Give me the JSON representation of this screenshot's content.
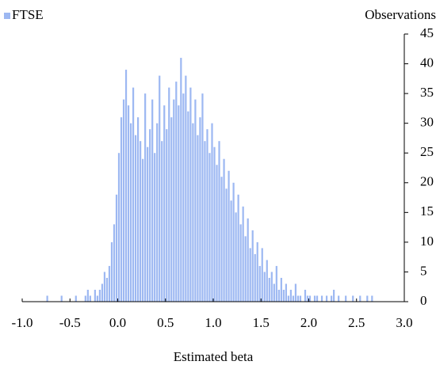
{
  "chart_data": {
    "type": "histogram",
    "x_label": "Estimated beta",
    "y_label": "Observations",
    "series": [
      {
        "name": "FTSE",
        "color": "#9db8f2",
        "values": [
          0,
          0,
          0,
          0,
          0,
          0,
          0,
          0,
          0,
          0,
          1,
          0,
          0,
          0,
          0,
          0,
          1,
          0,
          0,
          0,
          0,
          0,
          1,
          0,
          0,
          0,
          1,
          2,
          1,
          0,
          2,
          1,
          2,
          3,
          5,
          4,
          6,
          10,
          13,
          18,
          25,
          31,
          34,
          39,
          33,
          30,
          36,
          28,
          31,
          27,
          24,
          35,
          26,
          29,
          34,
          25,
          30,
          38,
          27,
          33,
          29,
          36,
          31,
          34,
          37,
          33,
          41,
          35,
          38,
          32,
          36,
          30,
          34,
          28,
          31,
          35,
          27,
          29,
          25,
          30,
          26,
          23,
          27,
          21,
          24,
          19,
          22,
          17,
          20,
          15,
          18,
          13,
          16,
          11,
          14,
          9,
          12,
          8,
          10,
          6,
          9,
          5,
          7,
          4,
          5,
          3,
          6,
          2,
          4,
          2,
          3,
          1,
          2,
          1,
          3,
          1,
          1,
          0,
          2,
          1,
          1,
          0,
          1,
          1,
          0,
          1,
          0,
          1,
          0,
          1,
          2,
          0,
          1,
          0,
          0,
          1,
          0,
          0,
          1,
          0,
          0,
          1,
          0,
          0,
          1,
          0,
          1,
          0,
          0,
          0,
          0,
          0,
          0,
          0,
          0,
          0,
          0,
          0,
          0,
          0
        ]
      }
    ],
    "bins": [
      -1,
      -0.975,
      -0.95,
      -0.925,
      -0.9,
      -0.875,
      -0.85,
      -0.825,
      -0.8,
      -0.775,
      -0.75,
      -0.725,
      -0.7,
      -0.675,
      -0.65,
      -0.625,
      -0.6,
      -0.575,
      -0.55,
      -0.525,
      -0.5,
      -0.475,
      -0.45,
      -0.425,
      -0.4,
      -0.375,
      -0.35,
      -0.325,
      -0.3,
      -0.275,
      -0.25,
      -0.225,
      -0.2,
      -0.175,
      -0.15,
      -0.125,
      -0.1,
      -0.075,
      -0.05,
      -0.025,
      0,
      0.025,
      0.05,
      0.075,
      0.1,
      0.125,
      0.15,
      0.175,
      0.2,
      0.225,
      0.25,
      0.275,
      0.3,
      0.325,
      0.35,
      0.375,
      0.4,
      0.425,
      0.45,
      0.475,
      0.5,
      0.525,
      0.55,
      0.575,
      0.6,
      0.625,
      0.65,
      0.675,
      0.7,
      0.725,
      0.75,
      0.775,
      0.8,
      0.825,
      0.85,
      0.875,
      0.9,
      0.925,
      0.95,
      0.975,
      1,
      1.025,
      1.05,
      1.075,
      1.1,
      1.125,
      1.15,
      1.175,
      1.2,
      1.225,
      1.25,
      1.275,
      1.3,
      1.325,
      1.35,
      1.375,
      1.4,
      1.425,
      1.45,
      1.475,
      1.5,
      1.525,
      1.55,
      1.575,
      1.6,
      1.625,
      1.65,
      1.675,
      1.7,
      1.725,
      1.75,
      1.775,
      1.8,
      1.825,
      1.85,
      1.875,
      1.9,
      1.925,
      1.95,
      1.975,
      2,
      2.025,
      2.05,
      2.075,
      2.1,
      2.125,
      2.15,
      2.175,
      2.2,
      2.225,
      2.25,
      2.275,
      2.3,
      2.325,
      2.35,
      2.375,
      2.4,
      2.425,
      2.45,
      2.475,
      2.5,
      2.525,
      2.55,
      2.575,
      2.6,
      2.625,
      2.65,
      2.675,
      2.7,
      2.725,
      2.75,
      2.775,
      2.8,
      2.825,
      2.85,
      2.875,
      2.9,
      2.925,
      2.95,
      2.975,
      3
    ],
    "xlim": [
      -1,
      3
    ],
    "ylim": [
      0,
      45
    ],
    "xticks": [
      {
        "value": -1,
        "label": "-1.0"
      },
      -0.5,
      {
        "value": 0,
        "label": "0.0"
      },
      0.5,
      {
        "value": 1,
        "label": "1.0"
      },
      1.5,
      {
        "value": 2,
        "label": "2.0"
      },
      2.5,
      {
        "value": 3,
        "label": "3.0"
      }
    ],
    "yticks": [
      0,
      5,
      10,
      15,
      20,
      25,
      30,
      35,
      40,
      45
    ],
    "y_axis_side": "right",
    "legend": "top-left"
  }
}
